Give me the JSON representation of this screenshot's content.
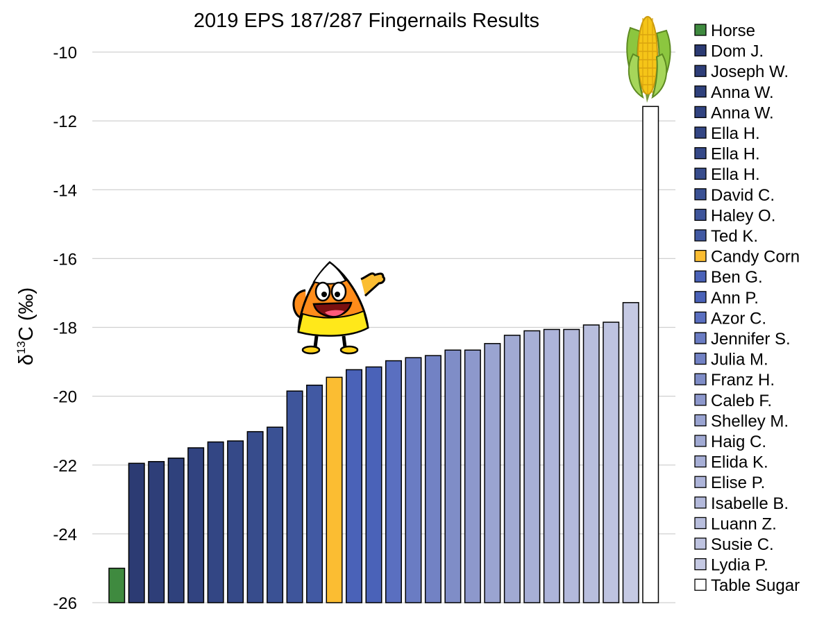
{
  "chart_data": {
    "type": "bar",
    "title": "2019 EPS 187/287 Fingernails Results",
    "ylabel": {
      "delta": "δ",
      "sup": "13",
      "rest": "C (‰)"
    },
    "xlabel": "",
    "ylim": [
      -26,
      -9
    ],
    "yticks": [
      -26,
      -24,
      -22,
      -20,
      -18,
      -16,
      -14,
      -12,
      -10
    ],
    "grid": true,
    "legend_position": "right",
    "categories": [
      "Horse",
      "Dom J.",
      "Joseph W.",
      "Anna W.",
      "Anna W.",
      "Ella H.",
      "Ella H.",
      "Ella H.",
      "David C.",
      "Haley O.",
      "Ted K.",
      "Candy Corn",
      "Ben G.",
      "Ann P.",
      "Azor C.",
      "Jennifer S.",
      "Julia M.",
      "Franz H.",
      "Caleb F.",
      "Shelley M.",
      "Haig C.",
      "Elida K.",
      "Elise P.",
      "Isabelle B.",
      "Luann Z.",
      "Susie C.",
      "Lydia P.",
      "Table Sugar"
    ],
    "values": [
      -25.0,
      -21.95,
      -21.9,
      -21.8,
      -21.5,
      -21.33,
      -21.3,
      -21.03,
      -20.9,
      -19.85,
      -19.68,
      -19.45,
      -19.23,
      -19.15,
      -18.97,
      -18.88,
      -18.82,
      -18.66,
      -18.66,
      -18.47,
      -18.23,
      -18.1,
      -18.06,
      -18.06,
      -17.93,
      -17.85,
      -17.28,
      -11.58
    ],
    "colors": [
      "#3f8a3f",
      "#2c3b73",
      "#2e3e78",
      "#2f417c",
      "#314380",
      "#334684",
      "#354988",
      "#374c8c",
      "#3a5194",
      "#3e559b",
      "#4159a3",
      "#fbbd32",
      "#4a62b8",
      "#4a62b8",
      "#5a6fc0",
      "#6a7cc3",
      "#7282c4",
      "#7f8dc7",
      "#8d98cc",
      "#9aa4d1",
      "#a1aad3",
      "#a7afd6",
      "#adb4d9",
      "#b3b9db",
      "#b8bedd",
      "#bec3e0",
      "#c5c9e3",
      "#ffffff"
    ]
  },
  "images": {
    "candy_corn": "candy-corn-mascot",
    "corn_cob": "corn-cob"
  }
}
